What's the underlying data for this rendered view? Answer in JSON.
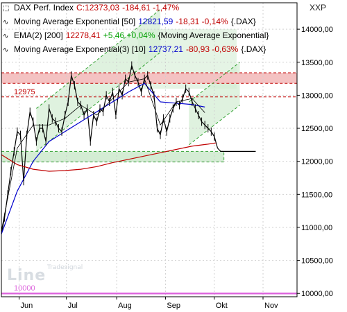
{
  "legend": [
    {
      "symbol": "⬚",
      "name": "DAX Perf. Index",
      "values": [
        {
          "text": "C:12373,03",
          "color": "#c00000"
        },
        {
          "text": "-184,61 -1,47%",
          "color": "#c00000"
        }
      ]
    },
    {
      "symbol": "∿",
      "name": "Moving Average Exponential [50]",
      "values": [
        {
          "text": "12821,59",
          "color": "#0000cc"
        },
        {
          "text": "-18,31 -0,14%",
          "color": "#c00000"
        },
        {
          "text": "{.DAX}",
          "color": "#000000"
        }
      ]
    },
    {
      "symbol": "∿",
      "name": "EMA(2) [200]",
      "values": [
        {
          "text": "12278,41",
          "color": "#c00000"
        },
        {
          "text": "+5,46 +0,04%",
          "color": "#00a000"
        },
        {
          "text": "{Moving Average Exponential}",
          "color": "#000000"
        }
      ]
    },
    {
      "symbol": "∿",
      "name": "Moving Average Exponential(3) [10]",
      "values": [
        {
          "text": "12737,21",
          "color": "#0000cc"
        },
        {
          "text": "-80,93 -0,63%",
          "color": "#c00000"
        },
        {
          "text": "{.DAX}",
          "color": "#000000"
        }
      ]
    }
  ],
  "axis_symbol": "XXP",
  "watermark": {
    "main": "Line",
    "small": "Tradesignal"
  },
  "colors": {
    "price": "#000000",
    "ema50": "#0000cc",
    "ema200": "#c00000",
    "ema10": "#000000",
    "channel": "#d4edd4",
    "resistance_band": "#f4c2c2",
    "level_line": "#dd66dd",
    "dashed_red": "#c00000",
    "dashed_green": "#33a333"
  },
  "chart_data": {
    "type": "line",
    "title": "DAX Perf. Index",
    "y_axis": {
      "ticks": [
        10000,
        10500,
        11000,
        11500,
        12000,
        12500,
        13000,
        13500,
        14000
      ],
      "tick_labels": [
        "10000,00",
        "10500,00",
        "11000,00",
        "11500,00",
        "12000,00",
        "12500,00",
        "13000,00",
        "13500,00",
        "14000,00"
      ],
      "ylim": [
        9950,
        14400
      ]
    },
    "x_axis": {
      "ticks": [
        "Jun",
        "Jul",
        "Aug",
        "Sep",
        "Okt",
        "Nov"
      ],
      "xlim": [
        0,
        186
      ]
    },
    "horizontal_levels": [
      {
        "label": "12975",
        "value": 12975,
        "style": "dashed",
        "color": "#c00000"
      },
      {
        "label": "10000",
        "value": 10000,
        "style": "solid",
        "color": "#dd66dd"
      }
    ],
    "resistance_band": [
      13180,
      13340
    ],
    "support_band": [
      11990,
      12150
    ],
    "series": [
      {
        "name": "DAX Perf. Index",
        "key": "price",
        "x": [
          0,
          2,
          4,
          6,
          8,
          10,
          12,
          14,
          16,
          18,
          20,
          22,
          24,
          26,
          28,
          30,
          32,
          34,
          36,
          38,
          40,
          42,
          44,
          46,
          48,
          50,
          52,
          54,
          56,
          58,
          60,
          62,
          64,
          66,
          68,
          70,
          72,
          74,
          76,
          78,
          80,
          82,
          84,
          86,
          88,
          90,
          92,
          94,
          96,
          98,
          100,
          102,
          104,
          106,
          108,
          110,
          112,
          114,
          116,
          118,
          120,
          122,
          124,
          126,
          128,
          130,
          132,
          134,
          136,
          138,
          140,
          142,
          144,
          146,
          148,
          150,
          152,
          154,
          156,
          158,
          160
        ],
        "y": [
          10900,
          11150,
          11500,
          11850,
          12150,
          12450,
          12400,
          11700,
          12400,
          12750,
          12600,
          12300,
          12500,
          12500,
          12300,
          12800,
          12650,
          12600,
          12500,
          12450,
          12700,
          12900,
          13300,
          13150,
          12900,
          12850,
          12700,
          12800,
          12300,
          12700,
          12600,
          12800,
          12750,
          13000,
          12900,
          13050,
          12700,
          13100,
          13000,
          13250,
          13200,
          13450,
          13300,
          13200,
          13050,
          13250,
          13300,
          13150,
          13000,
          12500,
          12400,
          12650,
          12450,
          12650,
          12800,
          12900,
          12850,
          12950,
          13100,
          13050,
          12900,
          12800,
          12700,
          12600,
          12550,
          12500,
          12450,
          12373,
          12200,
          12150,
          12150,
          12150,
          12150,
          12150,
          12150,
          12150,
          12150,
          12150,
          12150,
          12150,
          12150
        ]
      },
      {
        "name": "Moving Average Exponential [50]",
        "key": "ema50",
        "x": [
          0,
          10,
          20,
          30,
          40,
          50,
          60,
          70,
          80,
          90,
          100,
          110,
          120,
          128
        ],
        "y": [
          10900,
          11550,
          12000,
          12300,
          12450,
          12600,
          12750,
          12900,
          13050,
          13180,
          12900,
          12880,
          12860,
          12822
        ]
      },
      {
        "name": "EMA(2) [200]",
        "key": "ema200",
        "x": [
          0,
          10,
          20,
          30,
          40,
          50,
          60,
          70,
          80,
          90,
          100,
          110,
          120,
          130,
          135
        ],
        "y": [
          12100,
          11950,
          11880,
          11850,
          11860,
          11880,
          11920,
          11980,
          12030,
          12080,
          12130,
          12180,
          12230,
          12260,
          12278
        ]
      },
      {
        "name": "Moving Average Exponential(3) [10]",
        "key": "ema10",
        "x": [
          0,
          10,
          20,
          30,
          40,
          50,
          60,
          70,
          80,
          90,
          100,
          110,
          120,
          128
        ],
        "y": [
          10950,
          12200,
          12550,
          12550,
          12650,
          12850,
          12700,
          12950,
          13200,
          13250,
          12550,
          12900,
          12950,
          12737
        ]
      }
    ]
  }
}
